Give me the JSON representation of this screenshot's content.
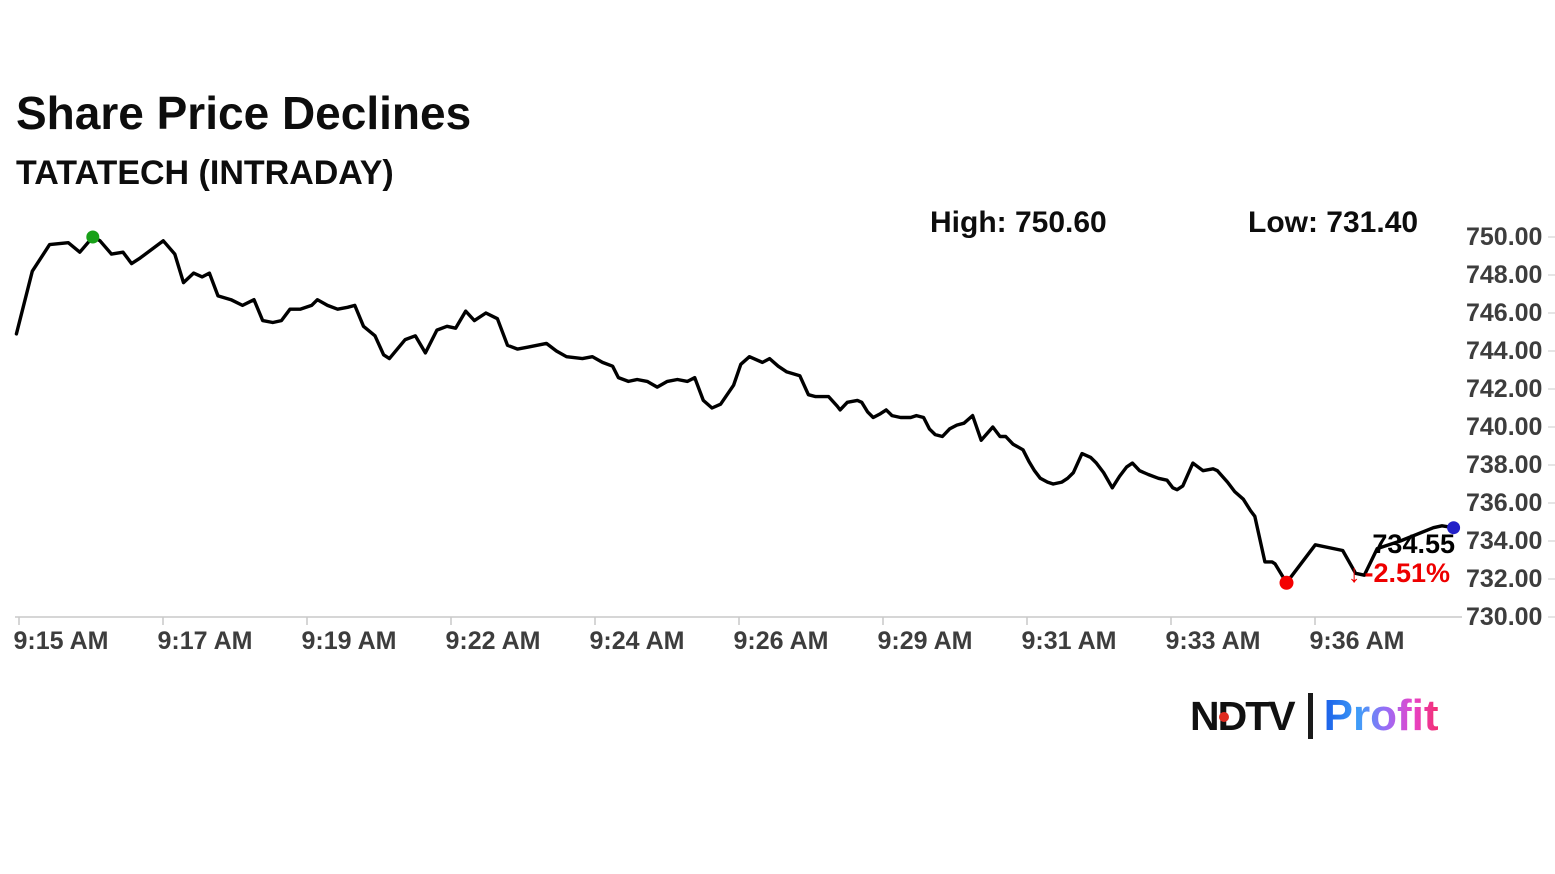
{
  "header": {
    "title": "Share Price Declines",
    "subtitle": "TATATECH (INTRADAY)"
  },
  "stats": {
    "high_label": "High: 750.60",
    "low_label": "Low: 731.40"
  },
  "annotation": {
    "last_price": "734.55",
    "change": "-2.51%",
    "arrow": "↓"
  },
  "logo": {
    "ndtv": "NDTV",
    "profit": "Profit"
  },
  "colors": {
    "line": "#000000",
    "high_dot": "#18a018",
    "low_dot": "#f40000",
    "end_dot": "#2220c8",
    "change_red": "#ee0000",
    "axis_text": "#3d3d3d",
    "baseline": "#c8c8c8",
    "right_tick": "#dcdcdc",
    "ndtv_dot": "#e02b20",
    "profit_gradient": [
      "#1a5fe8",
      "#3f9df8",
      "#9c6bf5",
      "#e743c8",
      "#f32d6d"
    ]
  },
  "chart_data": {
    "type": "line",
    "title": "Share Price Declines",
    "symbol": "TATATECH",
    "session": "INTRADAY",
    "high": 750.6,
    "low": 731.4,
    "last": 734.55,
    "change_pct": -2.51,
    "ylim": [
      730,
      750
    ],
    "grid": false,
    "legend": "none",
    "y_tick_labels": [
      "750.00",
      "748.00",
      "746.00",
      "744.00",
      "742.00",
      "740.00",
      "738.00",
      "736.00",
      "734.00",
      "732.00",
      "730.00"
    ],
    "y_tick_values": [
      750,
      748,
      746,
      744,
      742,
      740,
      738,
      736,
      734,
      732,
      730
    ],
    "x_tick_labels": [
      "9:15 AM",
      "9:17 AM",
      "9:19 AM",
      "9:22 AM",
      "9:24 AM",
      "9:26 AM",
      "9:29 AM",
      "9:31 AM",
      "9:33 AM",
      "9:36 AM"
    ],
    "points_format": "[position 0-100 along time axis, price]",
    "points": [
      [
        0.1,
        744.9
      ],
      [
        1.2,
        748.2
      ],
      [
        2.4,
        749.6
      ],
      [
        3.7,
        749.7
      ],
      [
        4.5,
        749.2
      ],
      [
        5.4,
        750.0
      ],
      [
        5.9,
        749.8
      ],
      [
        6.7,
        749.1
      ],
      [
        7.5,
        749.2
      ],
      [
        8.1,
        748.6
      ],
      [
        8.7,
        748.9
      ],
      [
        10.3,
        749.8
      ],
      [
        11.1,
        749.1
      ],
      [
        11.7,
        747.6
      ],
      [
        12.4,
        748.1
      ],
      [
        13.0,
        747.9
      ],
      [
        13.5,
        748.1
      ],
      [
        14.1,
        746.9
      ],
      [
        15.0,
        746.7
      ],
      [
        15.8,
        746.4
      ],
      [
        16.6,
        746.7
      ],
      [
        17.2,
        745.6
      ],
      [
        17.9,
        745.5
      ],
      [
        18.5,
        745.6
      ],
      [
        19.1,
        746.2
      ],
      [
        19.8,
        746.2
      ],
      [
        20.6,
        746.4
      ],
      [
        21.0,
        746.7
      ],
      [
        21.7,
        746.4
      ],
      [
        22.4,
        746.2
      ],
      [
        23.1,
        746.3
      ],
      [
        23.6,
        746.4
      ],
      [
        24.2,
        745.3
      ],
      [
        25.0,
        744.8
      ],
      [
        25.6,
        743.8
      ],
      [
        26.0,
        743.6
      ],
      [
        27.1,
        744.6
      ],
      [
        27.8,
        744.8
      ],
      [
        28.5,
        743.9
      ],
      [
        29.3,
        745.1
      ],
      [
        30.0,
        745.3
      ],
      [
        30.6,
        745.2
      ],
      [
        31.3,
        746.1
      ],
      [
        31.9,
        745.6
      ],
      [
        32.7,
        746.0
      ],
      [
        33.5,
        745.7
      ],
      [
        34.2,
        744.3
      ],
      [
        34.9,
        744.1
      ],
      [
        35.6,
        744.2
      ],
      [
        36.9,
        744.4
      ],
      [
        37.6,
        744.0
      ],
      [
        38.3,
        743.7
      ],
      [
        39.4,
        743.6
      ],
      [
        40.1,
        743.7
      ],
      [
        40.8,
        743.4
      ],
      [
        41.5,
        743.2
      ],
      [
        41.9,
        742.6
      ],
      [
        42.6,
        742.4
      ],
      [
        43.2,
        742.5
      ],
      [
        43.9,
        742.4
      ],
      [
        44.6,
        742.1
      ],
      [
        45.3,
        742.4
      ],
      [
        46.0,
        742.5
      ],
      [
        46.7,
        742.4
      ],
      [
        47.2,
        742.6
      ],
      [
        47.8,
        741.4
      ],
      [
        48.4,
        741.0
      ],
      [
        49.0,
        741.2
      ],
      [
        49.9,
        742.2
      ],
      [
        50.4,
        743.3
      ],
      [
        51.0,
        743.7
      ],
      [
        51.9,
        743.4
      ],
      [
        52.4,
        743.6
      ],
      [
        53.0,
        743.2
      ],
      [
        53.6,
        742.9
      ],
      [
        54.5,
        742.7
      ],
      [
        55.1,
        741.7
      ],
      [
        55.6,
        741.6
      ],
      [
        56.5,
        741.6
      ],
      [
        57.1,
        741.1
      ],
      [
        57.3,
        740.9
      ],
      [
        57.8,
        741.3
      ],
      [
        58.5,
        741.4
      ],
      [
        58.8,
        741.3
      ],
      [
        59.2,
        740.8
      ],
      [
        59.6,
        740.5
      ],
      [
        60.1,
        740.7
      ],
      [
        60.5,
        740.9
      ],
      [
        60.9,
        740.6
      ],
      [
        61.5,
        740.5
      ],
      [
        62.2,
        740.5
      ],
      [
        62.6,
        740.6
      ],
      [
        63.1,
        740.5
      ],
      [
        63.5,
        739.9
      ],
      [
        63.9,
        739.6
      ],
      [
        64.4,
        739.5
      ],
      [
        64.9,
        739.9
      ],
      [
        65.4,
        740.1
      ],
      [
        65.9,
        740.2
      ],
      [
        66.5,
        740.6
      ],
      [
        67.1,
        739.3
      ],
      [
        67.9,
        740.0
      ],
      [
        68.4,
        739.5
      ],
      [
        68.8,
        739.5
      ],
      [
        69.3,
        739.1
      ],
      [
        70.0,
        738.8
      ],
      [
        70.4,
        738.2
      ],
      [
        70.8,
        737.7
      ],
      [
        71.2,
        737.3
      ],
      [
        71.7,
        737.1
      ],
      [
        72.1,
        737.0
      ],
      [
        72.7,
        737.1
      ],
      [
        73.1,
        737.3
      ],
      [
        73.5,
        737.6
      ],
      [
        74.1,
        738.6
      ],
      [
        74.7,
        738.4
      ],
      [
        75.1,
        738.1
      ],
      [
        75.6,
        737.6
      ],
      [
        76.2,
        736.8
      ],
      [
        76.7,
        737.4
      ],
      [
        77.2,
        737.9
      ],
      [
        77.6,
        738.1
      ],
      [
        78.1,
        737.7
      ],
      [
        78.7,
        737.5
      ],
      [
        79.4,
        737.3
      ],
      [
        80.0,
        737.2
      ],
      [
        80.4,
        736.8
      ],
      [
        80.7,
        736.7
      ],
      [
        81.1,
        736.9
      ],
      [
        81.8,
        738.1
      ],
      [
        82.5,
        737.7
      ],
      [
        83.2,
        737.8
      ],
      [
        83.5,
        737.7
      ],
      [
        84.2,
        737.1
      ],
      [
        84.7,
        736.6
      ],
      [
        85.3,
        736.2
      ],
      [
        85.8,
        735.6
      ],
      [
        86.1,
        735.3
      ],
      [
        86.8,
        732.9
      ],
      [
        87.3,
        732.9
      ],
      [
        87.5,
        732.8
      ],
      [
        88.3,
        731.8
      ],
      [
        90.3,
        733.8
      ],
      [
        92.2,
        733.5
      ],
      [
        93.1,
        732.3
      ],
      [
        93.7,
        732.2
      ],
      [
        94.6,
        733.6
      ],
      [
        96.2,
        734.0
      ],
      [
        98.5,
        734.7
      ],
      [
        99.1,
        734.8
      ],
      [
        99.9,
        734.7
      ]
    ],
    "markers": {
      "high": {
        "t": 5.4,
        "price": 750.0
      },
      "low": {
        "t": 88.3,
        "price": 731.8
      },
      "end": {
        "t": 99.9,
        "price": 734.7
      }
    }
  }
}
